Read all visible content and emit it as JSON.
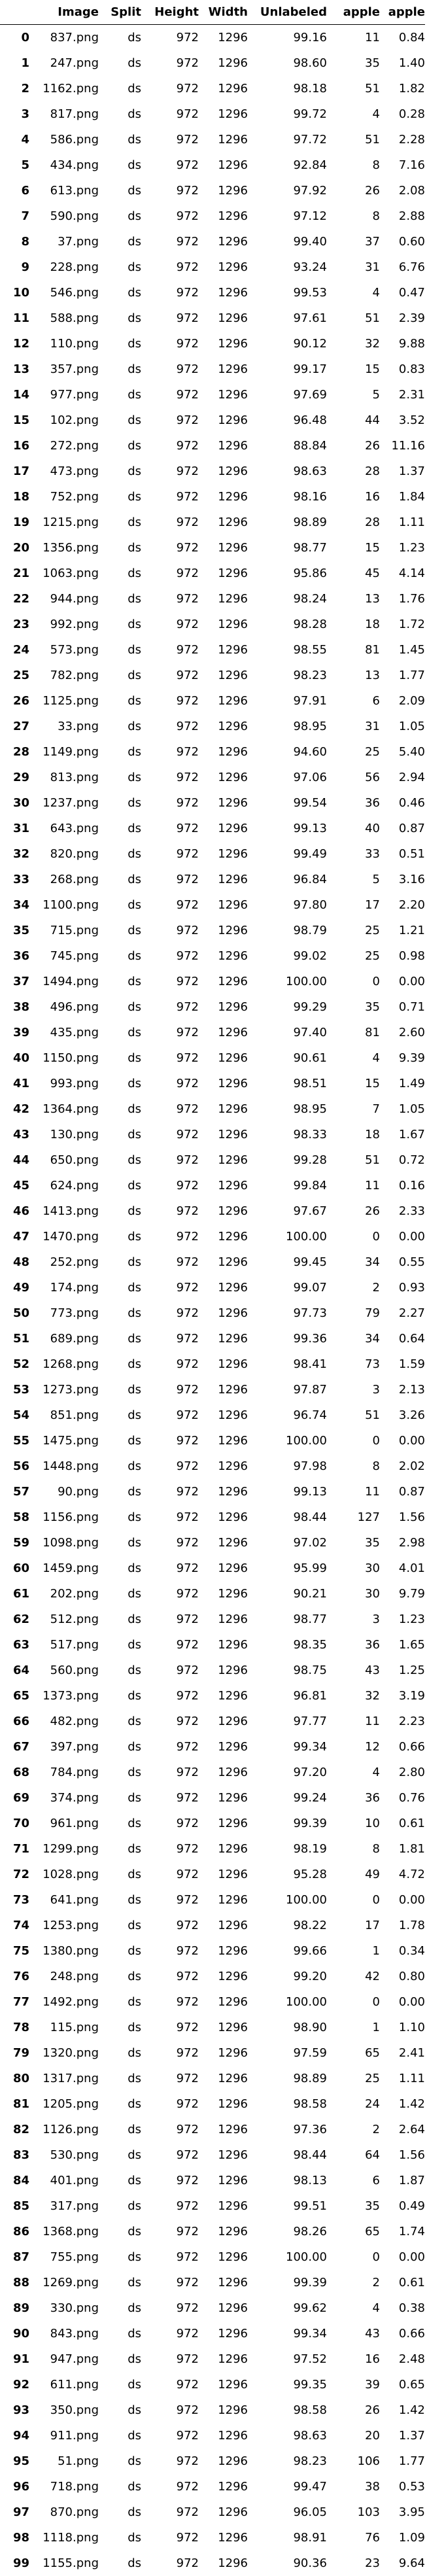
{
  "table": {
    "columns": [
      "",
      "Image",
      "Split",
      "Height",
      "Width",
      "Unlabeled",
      "apple",
      "apple"
    ],
    "rows": [
      [
        "0",
        "837.png",
        "ds",
        "972",
        "1296",
        "99.16",
        "11",
        "0.84"
      ],
      [
        "1",
        "247.png",
        "ds",
        "972",
        "1296",
        "98.60",
        "35",
        "1.40"
      ],
      [
        "2",
        "1162.png",
        "ds",
        "972",
        "1296",
        "98.18",
        "51",
        "1.82"
      ],
      [
        "3",
        "817.png",
        "ds",
        "972",
        "1296",
        "99.72",
        "4",
        "0.28"
      ],
      [
        "4",
        "586.png",
        "ds",
        "972",
        "1296",
        "97.72",
        "51",
        "2.28"
      ],
      [
        "5",
        "434.png",
        "ds",
        "972",
        "1296",
        "92.84",
        "8",
        "7.16"
      ],
      [
        "6",
        "613.png",
        "ds",
        "972",
        "1296",
        "97.92",
        "26",
        "2.08"
      ],
      [
        "7",
        "590.png",
        "ds",
        "972",
        "1296",
        "97.12",
        "8",
        "2.88"
      ],
      [
        "8",
        "37.png",
        "ds",
        "972",
        "1296",
        "99.40",
        "37",
        "0.60"
      ],
      [
        "9",
        "228.png",
        "ds",
        "972",
        "1296",
        "93.24",
        "31",
        "6.76"
      ],
      [
        "10",
        "546.png",
        "ds",
        "972",
        "1296",
        "99.53",
        "4",
        "0.47"
      ],
      [
        "11",
        "588.png",
        "ds",
        "972",
        "1296",
        "97.61",
        "51",
        "2.39"
      ],
      [
        "12",
        "110.png",
        "ds",
        "972",
        "1296",
        "90.12",
        "32",
        "9.88"
      ],
      [
        "13",
        "357.png",
        "ds",
        "972",
        "1296",
        "99.17",
        "15",
        "0.83"
      ],
      [
        "14",
        "977.png",
        "ds",
        "972",
        "1296",
        "97.69",
        "5",
        "2.31"
      ],
      [
        "15",
        "102.png",
        "ds",
        "972",
        "1296",
        "96.48",
        "44",
        "3.52"
      ],
      [
        "16",
        "272.png",
        "ds",
        "972",
        "1296",
        "88.84",
        "26",
        "11.16"
      ],
      [
        "17",
        "473.png",
        "ds",
        "972",
        "1296",
        "98.63",
        "28",
        "1.37"
      ],
      [
        "18",
        "752.png",
        "ds",
        "972",
        "1296",
        "98.16",
        "16",
        "1.84"
      ],
      [
        "19",
        "1215.png",
        "ds",
        "972",
        "1296",
        "98.89",
        "28",
        "1.11"
      ],
      [
        "20",
        "1356.png",
        "ds",
        "972",
        "1296",
        "98.77",
        "15",
        "1.23"
      ],
      [
        "21",
        "1063.png",
        "ds",
        "972",
        "1296",
        "95.86",
        "45",
        "4.14"
      ],
      [
        "22",
        "944.png",
        "ds",
        "972",
        "1296",
        "98.24",
        "13",
        "1.76"
      ],
      [
        "23",
        "992.png",
        "ds",
        "972",
        "1296",
        "98.28",
        "18",
        "1.72"
      ],
      [
        "24",
        "573.png",
        "ds",
        "972",
        "1296",
        "98.55",
        "81",
        "1.45"
      ],
      [
        "25",
        "782.png",
        "ds",
        "972",
        "1296",
        "98.23",
        "13",
        "1.77"
      ],
      [
        "26",
        "1125.png",
        "ds",
        "972",
        "1296",
        "97.91",
        "6",
        "2.09"
      ],
      [
        "27",
        "33.png",
        "ds",
        "972",
        "1296",
        "98.95",
        "31",
        "1.05"
      ],
      [
        "28",
        "1149.png",
        "ds",
        "972",
        "1296",
        "94.60",
        "25",
        "5.40"
      ],
      [
        "29",
        "813.png",
        "ds",
        "972",
        "1296",
        "97.06",
        "56",
        "2.94"
      ],
      [
        "30",
        "1237.png",
        "ds",
        "972",
        "1296",
        "99.54",
        "36",
        "0.46"
      ],
      [
        "31",
        "643.png",
        "ds",
        "972",
        "1296",
        "99.13",
        "40",
        "0.87"
      ],
      [
        "32",
        "820.png",
        "ds",
        "972",
        "1296",
        "99.49",
        "33",
        "0.51"
      ],
      [
        "33",
        "268.png",
        "ds",
        "972",
        "1296",
        "96.84",
        "5",
        "3.16"
      ],
      [
        "34",
        "1100.png",
        "ds",
        "972",
        "1296",
        "97.80",
        "17",
        "2.20"
      ],
      [
        "35",
        "715.png",
        "ds",
        "972",
        "1296",
        "98.79",
        "25",
        "1.21"
      ],
      [
        "36",
        "745.png",
        "ds",
        "972",
        "1296",
        "99.02",
        "25",
        "0.98"
      ],
      [
        "37",
        "1494.png",
        "ds",
        "972",
        "1296",
        "100.00",
        "0",
        "0.00"
      ],
      [
        "38",
        "496.png",
        "ds",
        "972",
        "1296",
        "99.29",
        "35",
        "0.71"
      ],
      [
        "39",
        "435.png",
        "ds",
        "972",
        "1296",
        "97.40",
        "81",
        "2.60"
      ],
      [
        "40",
        "1150.png",
        "ds",
        "972",
        "1296",
        "90.61",
        "4",
        "9.39"
      ],
      [
        "41",
        "993.png",
        "ds",
        "972",
        "1296",
        "98.51",
        "15",
        "1.49"
      ],
      [
        "42",
        "1364.png",
        "ds",
        "972",
        "1296",
        "98.95",
        "7",
        "1.05"
      ],
      [
        "43",
        "130.png",
        "ds",
        "972",
        "1296",
        "98.33",
        "18",
        "1.67"
      ],
      [
        "44",
        "650.png",
        "ds",
        "972",
        "1296",
        "99.28",
        "51",
        "0.72"
      ],
      [
        "45",
        "624.png",
        "ds",
        "972",
        "1296",
        "99.84",
        "11",
        "0.16"
      ],
      [
        "46",
        "1413.png",
        "ds",
        "972",
        "1296",
        "97.67",
        "26",
        "2.33"
      ],
      [
        "47",
        "1470.png",
        "ds",
        "972",
        "1296",
        "100.00",
        "0",
        "0.00"
      ],
      [
        "48",
        "252.png",
        "ds",
        "972",
        "1296",
        "99.45",
        "34",
        "0.55"
      ],
      [
        "49",
        "174.png",
        "ds",
        "972",
        "1296",
        "99.07",
        "2",
        "0.93"
      ],
      [
        "50",
        "773.png",
        "ds",
        "972",
        "1296",
        "97.73",
        "79",
        "2.27"
      ],
      [
        "51",
        "689.png",
        "ds",
        "972",
        "1296",
        "99.36",
        "34",
        "0.64"
      ],
      [
        "52",
        "1268.png",
        "ds",
        "972",
        "1296",
        "98.41",
        "73",
        "1.59"
      ],
      [
        "53",
        "1273.png",
        "ds",
        "972",
        "1296",
        "97.87",
        "3",
        "2.13"
      ],
      [
        "54",
        "851.png",
        "ds",
        "972",
        "1296",
        "96.74",
        "51",
        "3.26"
      ],
      [
        "55",
        "1475.png",
        "ds",
        "972",
        "1296",
        "100.00",
        "0",
        "0.00"
      ],
      [
        "56",
        "1448.png",
        "ds",
        "972",
        "1296",
        "97.98",
        "8",
        "2.02"
      ],
      [
        "57",
        "90.png",
        "ds",
        "972",
        "1296",
        "99.13",
        "11",
        "0.87"
      ],
      [
        "58",
        "1156.png",
        "ds",
        "972",
        "1296",
        "98.44",
        "127",
        "1.56"
      ],
      [
        "59",
        "1098.png",
        "ds",
        "972",
        "1296",
        "97.02",
        "35",
        "2.98"
      ],
      [
        "60",
        "1459.png",
        "ds",
        "972",
        "1296",
        "95.99",
        "30",
        "4.01"
      ],
      [
        "61",
        "202.png",
        "ds",
        "972",
        "1296",
        "90.21",
        "30",
        "9.79"
      ],
      [
        "62",
        "512.png",
        "ds",
        "972",
        "1296",
        "98.77",
        "3",
        "1.23"
      ],
      [
        "63",
        "517.png",
        "ds",
        "972",
        "1296",
        "98.35",
        "36",
        "1.65"
      ],
      [
        "64",
        "560.png",
        "ds",
        "972",
        "1296",
        "98.75",
        "43",
        "1.25"
      ],
      [
        "65",
        "1373.png",
        "ds",
        "972",
        "1296",
        "96.81",
        "32",
        "3.19"
      ],
      [
        "66",
        "482.png",
        "ds",
        "972",
        "1296",
        "97.77",
        "11",
        "2.23"
      ],
      [
        "67",
        "397.png",
        "ds",
        "972",
        "1296",
        "99.34",
        "12",
        "0.66"
      ],
      [
        "68",
        "784.png",
        "ds",
        "972",
        "1296",
        "97.20",
        "4",
        "2.80"
      ],
      [
        "69",
        "374.png",
        "ds",
        "972",
        "1296",
        "99.24",
        "36",
        "0.76"
      ],
      [
        "70",
        "961.png",
        "ds",
        "972",
        "1296",
        "99.39",
        "10",
        "0.61"
      ],
      [
        "71",
        "1299.png",
        "ds",
        "972",
        "1296",
        "98.19",
        "8",
        "1.81"
      ],
      [
        "72",
        "1028.png",
        "ds",
        "972",
        "1296",
        "95.28",
        "49",
        "4.72"
      ],
      [
        "73",
        "641.png",
        "ds",
        "972",
        "1296",
        "100.00",
        "0",
        "0.00"
      ],
      [
        "74",
        "1253.png",
        "ds",
        "972",
        "1296",
        "98.22",
        "17",
        "1.78"
      ],
      [
        "75",
        "1380.png",
        "ds",
        "972",
        "1296",
        "99.66",
        "1",
        "0.34"
      ],
      [
        "76",
        "248.png",
        "ds",
        "972",
        "1296",
        "99.20",
        "42",
        "0.80"
      ],
      [
        "77",
        "1492.png",
        "ds",
        "972",
        "1296",
        "100.00",
        "0",
        "0.00"
      ],
      [
        "78",
        "115.png",
        "ds",
        "972",
        "1296",
        "98.90",
        "1",
        "1.10"
      ],
      [
        "79",
        "1320.png",
        "ds",
        "972",
        "1296",
        "97.59",
        "65",
        "2.41"
      ],
      [
        "80",
        "1317.png",
        "ds",
        "972",
        "1296",
        "98.89",
        "25",
        "1.11"
      ],
      [
        "81",
        "1205.png",
        "ds",
        "972",
        "1296",
        "98.58",
        "24",
        "1.42"
      ],
      [
        "82",
        "1126.png",
        "ds",
        "972",
        "1296",
        "97.36",
        "2",
        "2.64"
      ],
      [
        "83",
        "530.png",
        "ds",
        "972",
        "1296",
        "98.44",
        "64",
        "1.56"
      ],
      [
        "84",
        "401.png",
        "ds",
        "972",
        "1296",
        "98.13",
        "6",
        "1.87"
      ],
      [
        "85",
        "317.png",
        "ds",
        "972",
        "1296",
        "99.51",
        "35",
        "0.49"
      ],
      [
        "86",
        "1368.png",
        "ds",
        "972",
        "1296",
        "98.26",
        "65",
        "1.74"
      ],
      [
        "87",
        "755.png",
        "ds",
        "972",
        "1296",
        "100.00",
        "0",
        "0.00"
      ],
      [
        "88",
        "1269.png",
        "ds",
        "972",
        "1296",
        "99.39",
        "2",
        "0.61"
      ],
      [
        "89",
        "330.png",
        "ds",
        "972",
        "1296",
        "99.62",
        "4",
        "0.38"
      ],
      [
        "90",
        "843.png",
        "ds",
        "972",
        "1296",
        "99.34",
        "43",
        "0.66"
      ],
      [
        "91",
        "947.png",
        "ds",
        "972",
        "1296",
        "97.52",
        "16",
        "2.48"
      ],
      [
        "92",
        "611.png",
        "ds",
        "972",
        "1296",
        "99.35",
        "39",
        "0.65"
      ],
      [
        "93",
        "350.png",
        "ds",
        "972",
        "1296",
        "98.58",
        "26",
        "1.42"
      ],
      [
        "94",
        "911.png",
        "ds",
        "972",
        "1296",
        "98.63",
        "20",
        "1.37"
      ],
      [
        "95",
        "51.png",
        "ds",
        "972",
        "1296",
        "98.23",
        "106",
        "1.77"
      ],
      [
        "96",
        "718.png",
        "ds",
        "972",
        "1296",
        "99.47",
        "38",
        "0.53"
      ],
      [
        "97",
        "870.png",
        "ds",
        "972",
        "1296",
        "96.05",
        "103",
        "3.95"
      ],
      [
        "98",
        "1118.png",
        "ds",
        "972",
        "1296",
        "98.91",
        "76",
        "1.09"
      ],
      [
        "99",
        "1155.png",
        "ds",
        "972",
        "1296",
        "90.36",
        "23",
        "9.64"
      ]
    ]
  }
}
